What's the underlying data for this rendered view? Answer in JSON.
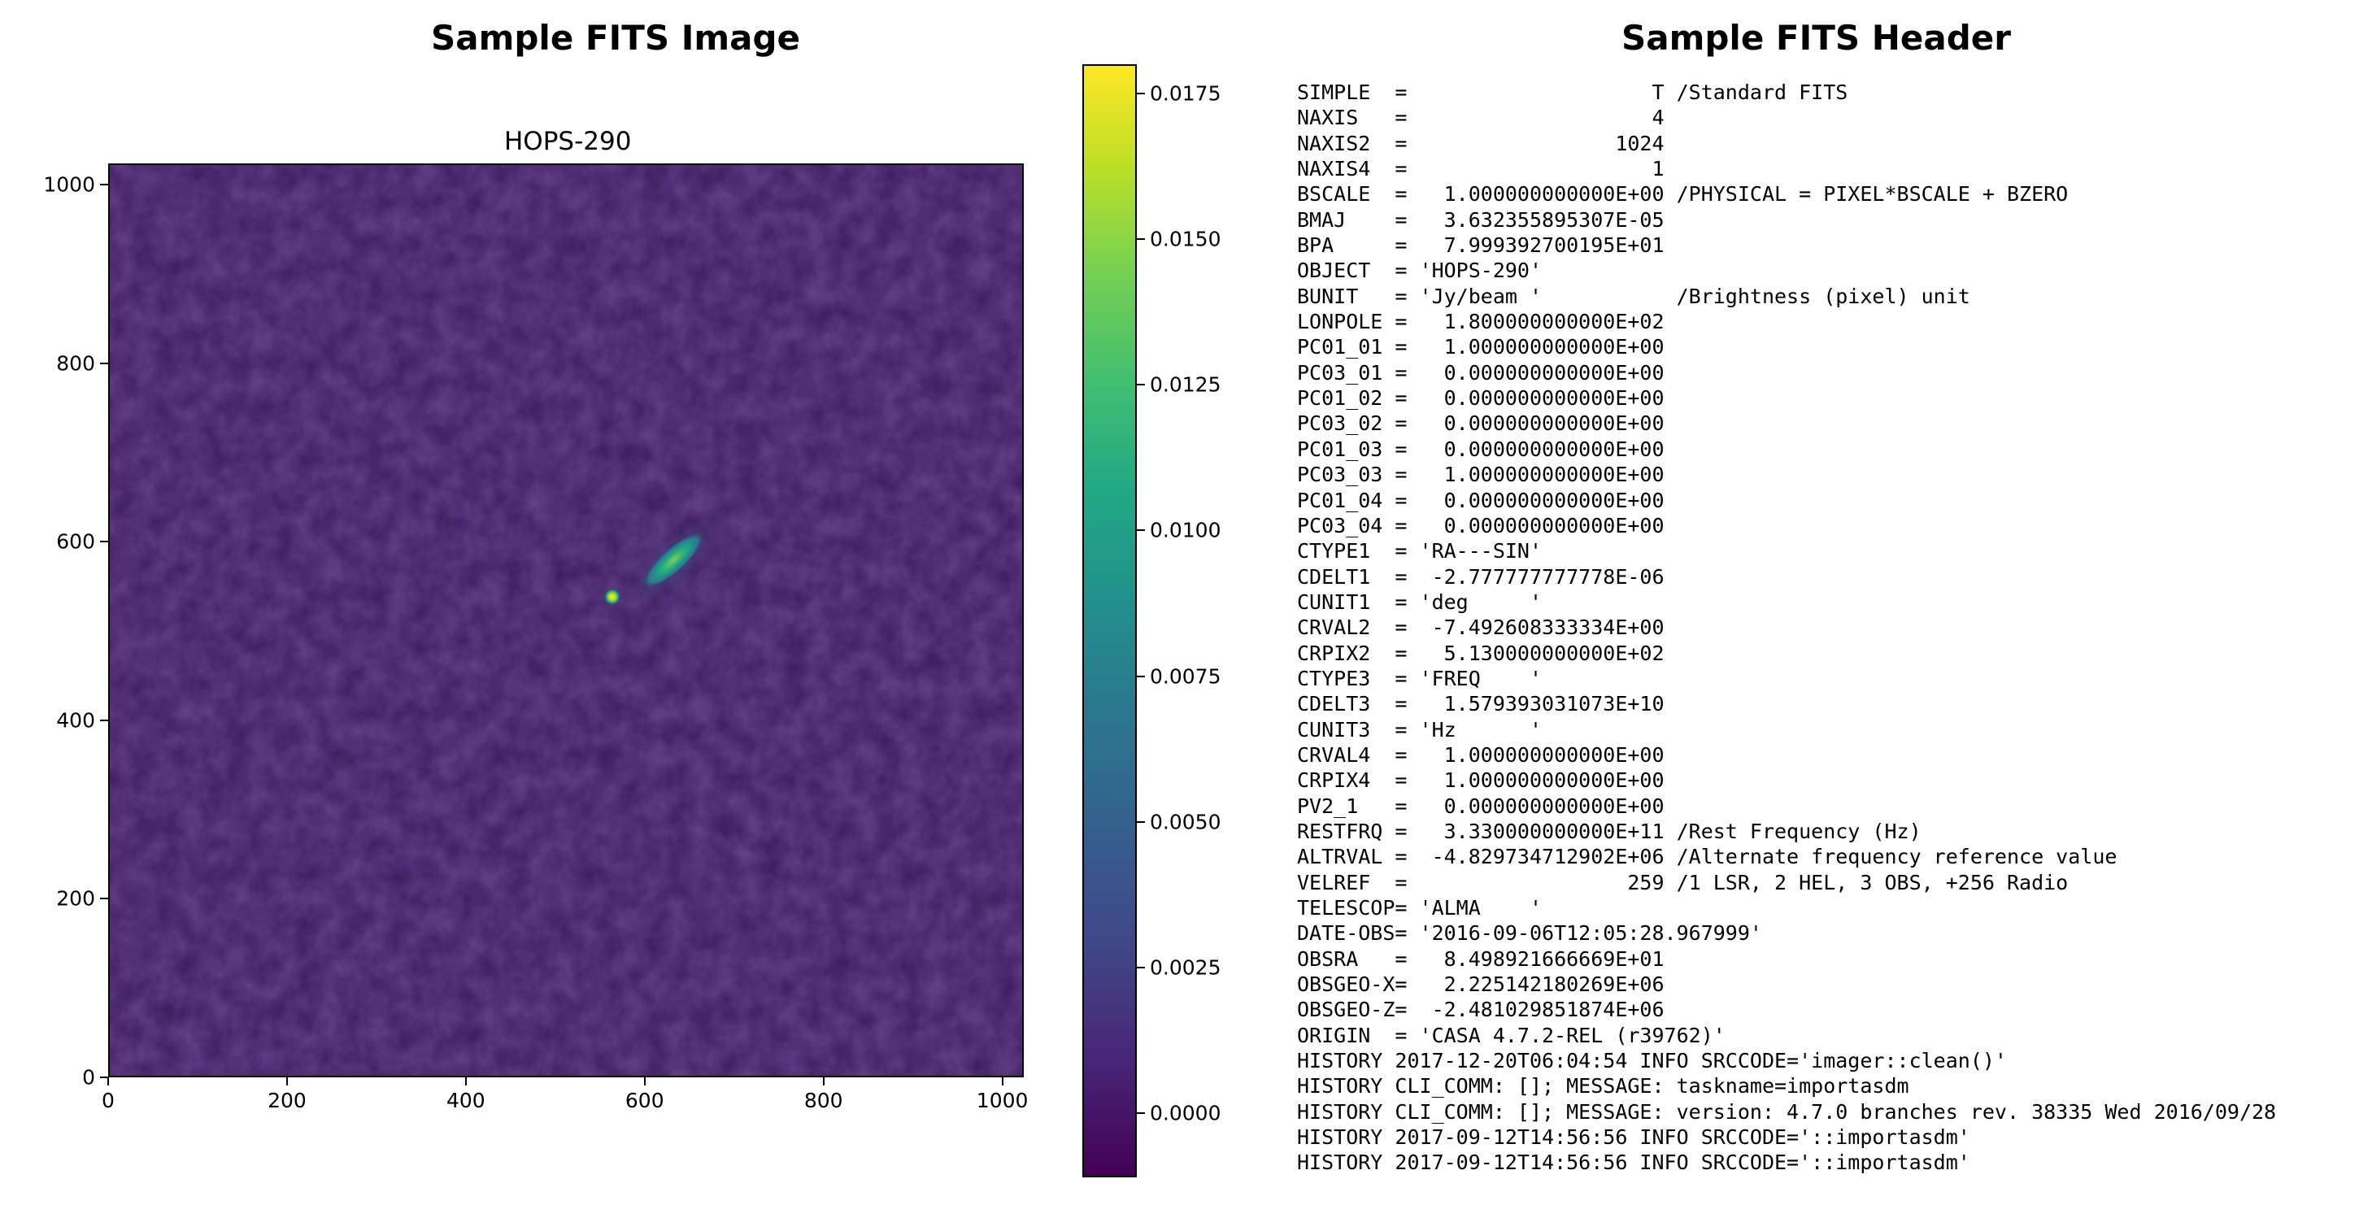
{
  "left_panel": {
    "title": "Sample FITS Image",
    "plot_title": "HOPS-290",
    "x_ticks": [
      "0",
      "200",
      "400",
      "600",
      "800",
      "1000"
    ],
    "y_ticks": [
      "0",
      "200",
      "400",
      "600",
      "800",
      "1000"
    ],
    "x_range": [
      0,
      1024
    ],
    "y_range": [
      0,
      1024
    ],
    "colormap": "viridis",
    "colorbar": {
      "ticks": [
        "0.0000",
        "0.0025",
        "0.0050",
        "0.0075",
        "0.0100",
        "0.0125",
        "0.0150",
        "0.0175"
      ],
      "range": [
        -0.0011,
        0.018
      ]
    },
    "colors": {
      "background_noise": "#3f1f62",
      "source_core": "#fde725",
      "source_jet": "#5ec962"
    }
  },
  "right_panel": {
    "title": "Sample FITS Header",
    "lines": [
      "SIMPLE  =                    T /Standard FITS",
      "NAXIS   =                    4",
      "NAXIS2  =                 1024",
      "NAXIS4  =                    1",
      "BSCALE  =   1.000000000000E+00 /PHYSICAL = PIXEL*BSCALE + BZERO",
      "BMAJ    =   3.632355895307E-05",
      "BPA     =   7.999392700195E+01",
      "OBJECT  = 'HOPS-290'",
      "BUNIT   = 'Jy/beam '           /Brightness (pixel) unit",
      "LONPOLE =   1.800000000000E+02",
      "PC01_01 =   1.000000000000E+00",
      "PC03_01 =   0.000000000000E+00",
      "PC01_02 =   0.000000000000E+00",
      "PC03_02 =   0.000000000000E+00",
      "PC01_03 =   0.000000000000E+00",
      "PC03_03 =   1.000000000000E+00",
      "PC01_04 =   0.000000000000E+00",
      "PC03_04 =   0.000000000000E+00",
      "CTYPE1  = 'RA---SIN'",
      "CDELT1  =  -2.777777777778E-06",
      "CUNIT1  = 'deg     '",
      "CRVAL2  =  -7.492608333334E+00",
      "CRPIX2  =   5.130000000000E+02",
      "CTYPE3  = 'FREQ    '",
      "CDELT3  =   1.579393031073E+10",
      "CUNIT3  = 'Hz      '",
      "CRVAL4  =   1.000000000000E+00",
      "CRPIX4  =   1.000000000000E+00",
      "PV2_1   =   0.000000000000E+00",
      "RESTFRQ =   3.330000000000E+11 /Rest Frequency (Hz)",
      "ALTRVAL =  -4.829734712902E+06 /Alternate frequency reference value",
      "VELREF  =                  259 /1 LSR, 2 HEL, 3 OBS, +256 Radio",
      "TELESCOP= 'ALMA    '",
      "DATE-OBS= '2016-09-06T12:05:28.967999'",
      "OBSRA   =   8.498921666669E+01",
      "OBSGEO-X=   2.225142180269E+06",
      "OBSGEO-Z=  -2.481029851874E+06",
      "ORIGIN  = 'CASA 4.7.2-REL (r39762)'",
      "HISTORY 2017-12-20T06:04:54 INFO SRCCODE='imager::clean()'",
      "HISTORY CLI_COMM: []; MESSAGE: taskname=importasdm",
      "HISTORY CLI_COMM: []; MESSAGE: version: 4.7.0 branches rev. 38335 Wed 2016/09/28",
      "HISTORY 2017-09-12T14:56:56 INFO SRCCODE='::importasdm'",
      "HISTORY 2017-09-12T14:56:56 INFO SRCCODE='::importasdm'"
    ]
  }
}
